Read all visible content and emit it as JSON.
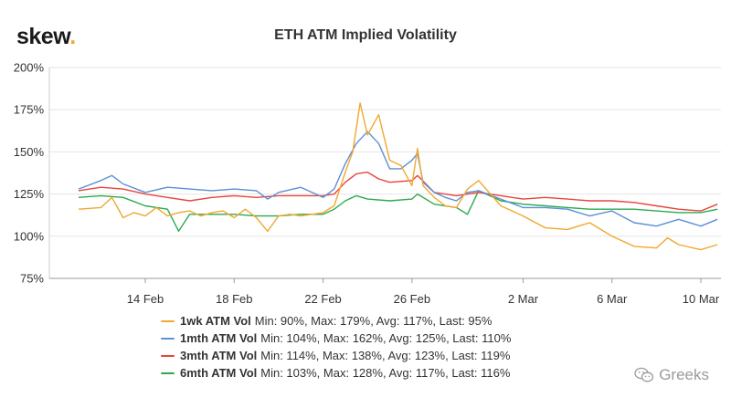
{
  "logo": {
    "text": "skew",
    "dot": "."
  },
  "watermark": {
    "text": "Greeks",
    "icon": "wechat-icon"
  },
  "colors": {
    "1wk": "#f0a830",
    "1mth": "#5b8fd6",
    "3mth": "#e8453c",
    "6mth": "#2eaa4f",
    "grid": "#e6e6e6",
    "axis": "#333333"
  },
  "chart_data": {
    "type": "line",
    "title": "ETH ATM Implied Volatility",
    "xlabel": "",
    "ylabel": "",
    "ylim": [
      75,
      200
    ],
    "y_ticks": [
      "200%",
      "175%",
      "150%",
      "125%",
      "100%",
      "75%"
    ],
    "x_ticks": [
      "14 Feb",
      "18 Feb",
      "22 Feb",
      "26 Feb",
      "2 Mar",
      "6 Mar",
      "10 Mar"
    ],
    "x_tick_dates": [
      "2020-02-14",
      "2020-02-18",
      "2020-02-22",
      "2020-02-26",
      "2020-03-02",
      "2020-03-06",
      "2020-03-10"
    ],
    "grid": "horizontal",
    "legend_position": "bottom",
    "series": [
      {
        "key": "1wk",
        "name": "1wk ATM Vol",
        "stats": "Min: 90%, Max: 179%, Avg: 117%, Last: 95%",
        "points": [
          [
            "2020-02-11",
            116
          ],
          [
            "2020-02-12",
            117
          ],
          [
            "2020-02-12T12:00",
            123
          ],
          [
            "2020-02-13",
            111
          ],
          [
            "2020-02-13T12:00",
            114
          ],
          [
            "2020-02-14",
            112
          ],
          [
            "2020-02-14T12:00",
            117
          ],
          [
            "2020-02-15",
            112
          ],
          [
            "2020-02-15T12:00",
            114
          ],
          [
            "2020-02-16",
            115
          ],
          [
            "2020-02-16T12:00",
            112
          ],
          [
            "2020-02-17",
            114
          ],
          [
            "2020-02-17T12:00",
            115
          ],
          [
            "2020-02-18",
            111
          ],
          [
            "2020-02-18T12:00",
            116
          ],
          [
            "2020-02-19",
            111
          ],
          [
            "2020-02-19T12:00",
            103
          ],
          [
            "2020-02-20",
            112
          ],
          [
            "2020-02-20T12:00",
            113
          ],
          [
            "2020-02-21",
            112
          ],
          [
            "2020-02-21T12:00",
            113
          ],
          [
            "2020-02-22",
            114
          ],
          [
            "2020-02-22T12:00",
            118
          ],
          [
            "2020-02-23",
            138
          ],
          [
            "2020-02-23T08:00",
            150
          ],
          [
            "2020-02-23T16:00",
            179
          ],
          [
            "2020-02-24",
            160
          ],
          [
            "2020-02-24T12:00",
            172
          ],
          [
            "2020-02-25",
            145
          ],
          [
            "2020-02-25T12:00",
            142
          ],
          [
            "2020-02-26",
            130
          ],
          [
            "2020-02-26T06:00",
            152
          ],
          [
            "2020-02-26T12:00",
            130
          ],
          [
            "2020-02-27",
            123
          ],
          [
            "2020-02-27T12:00",
            118
          ],
          [
            "2020-02-28",
            117
          ],
          [
            "2020-02-28T12:00",
            128
          ],
          [
            "2020-02-29",
            133
          ],
          [
            "2020-03-01",
            118
          ],
          [
            "2020-03-02",
            112
          ],
          [
            "2020-03-03",
            105
          ],
          [
            "2020-03-04",
            104
          ],
          [
            "2020-03-05",
            108
          ],
          [
            "2020-03-06",
            100
          ],
          [
            "2020-03-07",
            94
          ],
          [
            "2020-03-08",
            93
          ],
          [
            "2020-03-08T12:00",
            99
          ],
          [
            "2020-03-09",
            95
          ],
          [
            "2020-03-10",
            92
          ],
          [
            "2020-03-10T18:00",
            95
          ]
        ]
      },
      {
        "key": "1mth",
        "name": "1mth ATM Vol",
        "stats": "Min: 104%, Max: 162%, Avg: 125%, Last: 110%",
        "points": [
          [
            "2020-02-11",
            128
          ],
          [
            "2020-02-12",
            133
          ],
          [
            "2020-02-12T12:00",
            136
          ],
          [
            "2020-02-13",
            131
          ],
          [
            "2020-02-14",
            126
          ],
          [
            "2020-02-15",
            129
          ],
          [
            "2020-02-16",
            128
          ],
          [
            "2020-02-17",
            127
          ],
          [
            "2020-02-18",
            128
          ],
          [
            "2020-02-19",
            127
          ],
          [
            "2020-02-19T12:00",
            122
          ],
          [
            "2020-02-20",
            126
          ],
          [
            "2020-02-21",
            129
          ],
          [
            "2020-02-22",
            123
          ],
          [
            "2020-02-22T12:00",
            128
          ],
          [
            "2020-02-23",
            143
          ],
          [
            "2020-02-23T12:00",
            155
          ],
          [
            "2020-02-24",
            162
          ],
          [
            "2020-02-24T12:00",
            155
          ],
          [
            "2020-02-25",
            140
          ],
          [
            "2020-02-25T12:00",
            140
          ],
          [
            "2020-02-26",
            145
          ],
          [
            "2020-02-26T06:00",
            149
          ],
          [
            "2020-02-26T12:00",
            132
          ],
          [
            "2020-02-27",
            126
          ],
          [
            "2020-02-27T12:00",
            123
          ],
          [
            "2020-02-28",
            121
          ],
          [
            "2020-02-28T12:00",
            126
          ],
          [
            "2020-02-29",
            127
          ],
          [
            "2020-03-01",
            122
          ],
          [
            "2020-03-02",
            117
          ],
          [
            "2020-03-03",
            117
          ],
          [
            "2020-03-04",
            116
          ],
          [
            "2020-03-05",
            112
          ],
          [
            "2020-03-06",
            115
          ],
          [
            "2020-03-07",
            108
          ],
          [
            "2020-03-08",
            106
          ],
          [
            "2020-03-09",
            110
          ],
          [
            "2020-03-10",
            106
          ],
          [
            "2020-03-10T18:00",
            110
          ]
        ]
      },
      {
        "key": "3mth",
        "name": "3mth ATM Vol",
        "stats": "Min: 114%, Max: 138%, Avg: 123%, Last: 119%",
        "points": [
          [
            "2020-02-11",
            127
          ],
          [
            "2020-02-12",
            129
          ],
          [
            "2020-02-13",
            128
          ],
          [
            "2020-02-14",
            125
          ],
          [
            "2020-02-15",
            123
          ],
          [
            "2020-02-16",
            121
          ],
          [
            "2020-02-17",
            123
          ],
          [
            "2020-02-18",
            124
          ],
          [
            "2020-02-19",
            123
          ],
          [
            "2020-02-20",
            124
          ],
          [
            "2020-02-21",
            124
          ],
          [
            "2020-02-22",
            124
          ],
          [
            "2020-02-22T12:00",
            125
          ],
          [
            "2020-02-23",
            132
          ],
          [
            "2020-02-23T12:00",
            137
          ],
          [
            "2020-02-24",
            138
          ],
          [
            "2020-02-24T12:00",
            134
          ],
          [
            "2020-02-25",
            132
          ],
          [
            "2020-02-26",
            133
          ],
          [
            "2020-02-26T06:00",
            136
          ],
          [
            "2020-02-27",
            126
          ],
          [
            "2020-02-28",
            124
          ],
          [
            "2020-02-29",
            126
          ],
          [
            "2020-03-01",
            124
          ],
          [
            "2020-03-02",
            122
          ],
          [
            "2020-03-03",
            123
          ],
          [
            "2020-03-04",
            122
          ],
          [
            "2020-03-05",
            121
          ],
          [
            "2020-03-06",
            121
          ],
          [
            "2020-03-07",
            120
          ],
          [
            "2020-03-08",
            118
          ],
          [
            "2020-03-09",
            116
          ],
          [
            "2020-03-10",
            115
          ],
          [
            "2020-03-10T18:00",
            119
          ]
        ]
      },
      {
        "key": "6mth",
        "name": "6mth ATM Vol",
        "stats": "Min: 103%, Max: 128%, Avg: 117%, Last: 116%",
        "points": [
          [
            "2020-02-11",
            123
          ],
          [
            "2020-02-12",
            124
          ],
          [
            "2020-02-13",
            123
          ],
          [
            "2020-02-14",
            118
          ],
          [
            "2020-02-15",
            116
          ],
          [
            "2020-02-15T12:00",
            103
          ],
          [
            "2020-02-16",
            113
          ],
          [
            "2020-02-17",
            113
          ],
          [
            "2020-02-18",
            113
          ],
          [
            "2020-02-19",
            112
          ],
          [
            "2020-02-20",
            112
          ],
          [
            "2020-02-21",
            113
          ],
          [
            "2020-02-22",
            113
          ],
          [
            "2020-02-22T12:00",
            116
          ],
          [
            "2020-02-23",
            121
          ],
          [
            "2020-02-23T12:00",
            124
          ],
          [
            "2020-02-24",
            122
          ],
          [
            "2020-02-25",
            121
          ],
          [
            "2020-02-26",
            122
          ],
          [
            "2020-02-26T06:00",
            125
          ],
          [
            "2020-02-27",
            119
          ],
          [
            "2020-02-28",
            117
          ],
          [
            "2020-02-28T12:00",
            113
          ],
          [
            "2020-02-29",
            127
          ],
          [
            "2020-03-01",
            121
          ],
          [
            "2020-03-02",
            119
          ],
          [
            "2020-03-03",
            118
          ],
          [
            "2020-03-04",
            117
          ],
          [
            "2020-03-05",
            116
          ],
          [
            "2020-03-06",
            116
          ],
          [
            "2020-03-07",
            116
          ],
          [
            "2020-03-08",
            115
          ],
          [
            "2020-03-09",
            114
          ],
          [
            "2020-03-10",
            114
          ],
          [
            "2020-03-10T18:00",
            116
          ]
        ]
      }
    ]
  }
}
